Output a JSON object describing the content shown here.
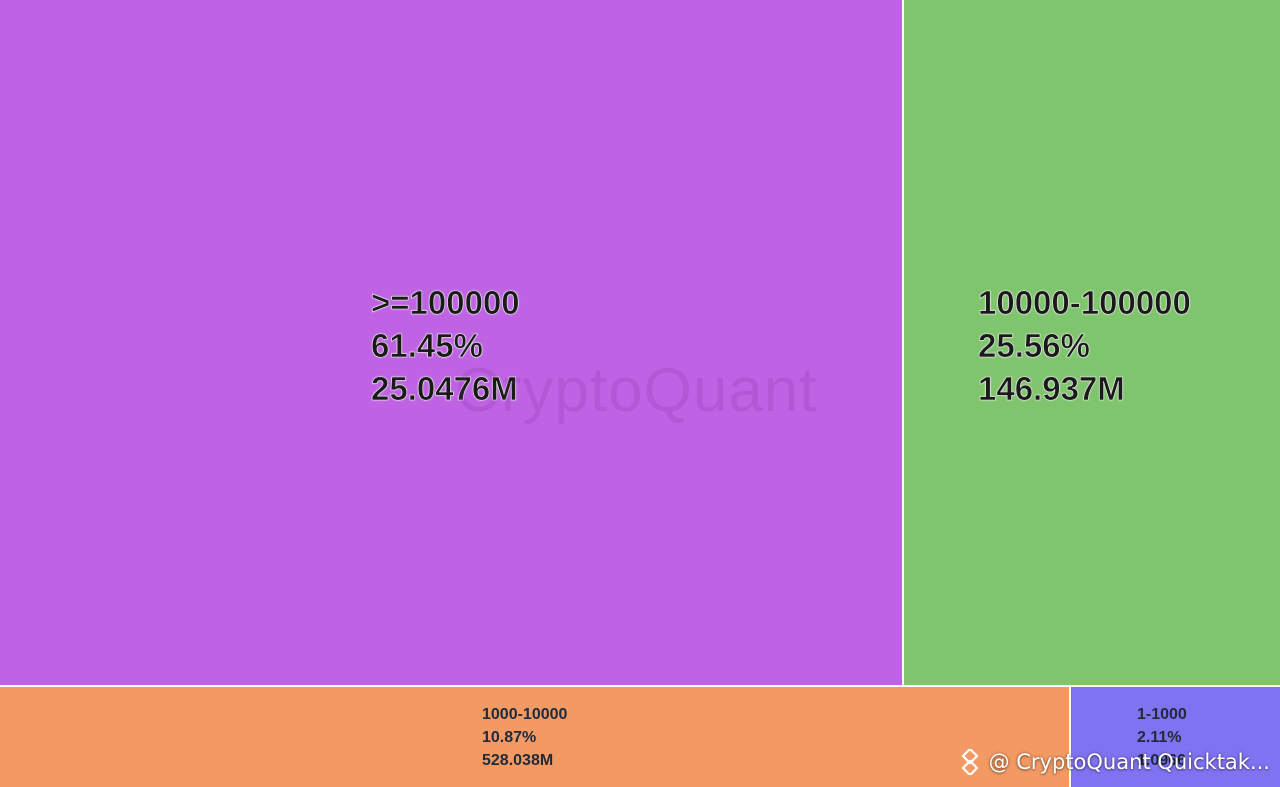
{
  "chart_data": {
    "type": "treemap",
    "title": "",
    "items": [
      {
        "label": ">=100000",
        "percent": "61.45%",
        "value": "25.0476M",
        "share": 61.45,
        "color": "#bf63e4"
      },
      {
        "label": "10000-100000",
        "percent": "25.56%",
        "value": "146.937M",
        "share": 25.56,
        "color": "#7fc56d"
      },
      {
        "label": "1000-10000",
        "percent": "10.87%",
        "value": "528.038M",
        "share": 10.87,
        "color": "#f39a64"
      },
      {
        "label": "1-1000",
        "percent": "2.11%",
        "value": "1.0966",
        "share": 2.11,
        "color": "#8073f2"
      }
    ]
  },
  "watermark": "CryptoQuant",
  "credit": {
    "text": "@ CryptoQuant Quicktak...",
    "icon": "binance-square-icon"
  }
}
